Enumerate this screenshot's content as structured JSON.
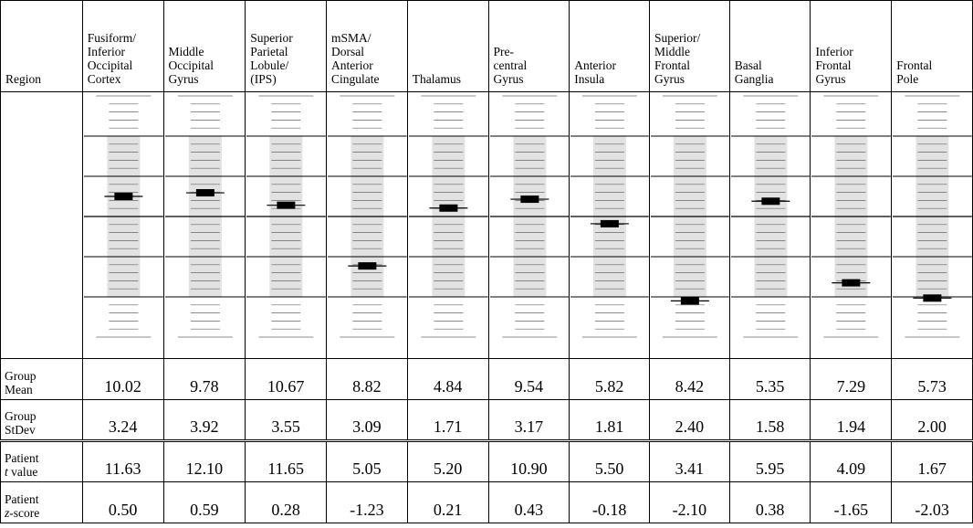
{
  "table": {
    "region_header": "Region",
    "row_labels": {
      "group_mean": "Group\nMean",
      "group_stdev": "Group\nStDev",
      "patient_t": "Patient",
      "patient_t_symbol": "t",
      "patient_t_suffix": " value",
      "patient_z": "Patient",
      "patient_z_symbol": "z",
      "patient_z_suffix": "-score"
    },
    "regions": [
      {
        "name": "Fusiform/\nInferior\nOccipital\nCortex",
        "mean": "10.02",
        "stdev": "3.24",
        "t": "11.63",
        "z": "0.50"
      },
      {
        "name": "Middle\nOccipital\nGyrus",
        "mean": "9.78",
        "stdev": "3.92",
        "t": "12.10",
        "z": "0.59"
      },
      {
        "name": "Superior\nParietal\nLobule/\n(IPS)",
        "mean": "10.67",
        "stdev": "3.55",
        "t": "11.65",
        "z": "0.28"
      },
      {
        "name": "mSMA/\nDorsal\nAnterior\nCingulate",
        "mean": "8.82",
        "stdev": "3.09",
        "t": "5.05",
        "z": "-1.23"
      },
      {
        "name": "Thalamus",
        "mean": "4.84",
        "stdev": "1.71",
        "t": "5.20",
        "z": "0.21"
      },
      {
        "name": "Pre-\ncentral\nGyrus",
        "mean": "9.54",
        "stdev": "3.17",
        "t": "10.90",
        "z": "0.43"
      },
      {
        "name": "Anterior\nInsula",
        "mean": "5.82",
        "stdev": "1.81",
        "t": "5.50",
        "z": "-0.18"
      },
      {
        "name": "Superior/\nMiddle\nFrontal\nGyrus",
        "mean": "8.42",
        "stdev": "2.40",
        "t": "3.41",
        "z": "-2.10"
      },
      {
        "name": "Basal\nGanglia",
        "mean": "5.35",
        "stdev": "1.58",
        "t": "5.95",
        "z": "0.38"
      },
      {
        "name": "Inferior\nFrontal\nGyrus",
        "mean": "7.29",
        "stdev": "1.94",
        "t": "4.09",
        "z": "-1.65"
      },
      {
        "name": "Frontal\nPole",
        "mean": "5.73",
        "stdev": "2.00",
        "t": "1.67",
        "z": "-2.03"
      }
    ]
  },
  "chart_data": {
    "type": "table",
    "measure": "z-score",
    "z_range": [
      -3,
      3
    ],
    "shaded_band": [
      -2,
      2
    ],
    "reference_lines_major": [
      -3,
      -2,
      -1,
      0,
      1,
      2,
      3
    ],
    "categories": [
      "Fusiform/Inferior Occipital Cortex",
      "Middle Occipital Gyrus",
      "Superior Parietal Lobule/(IPS)",
      "mSMA/Dorsal Anterior Cingulate",
      "Thalamus",
      "Pre-central Gyrus",
      "Anterior Insula",
      "Superior/Middle Frontal Gyrus",
      "Basal Ganglia",
      "Inferior Frontal Gyrus",
      "Frontal Pole"
    ],
    "values": [
      0.5,
      0.59,
      0.28,
      -1.23,
      0.21,
      0.43,
      -0.18,
      -2.1,
      0.38,
      -1.65,
      -2.03
    ],
    "colors": {
      "band": "#e2e2e2",
      "line": "#000000",
      "minor_line": "#666666",
      "marker": "#000000"
    }
  }
}
